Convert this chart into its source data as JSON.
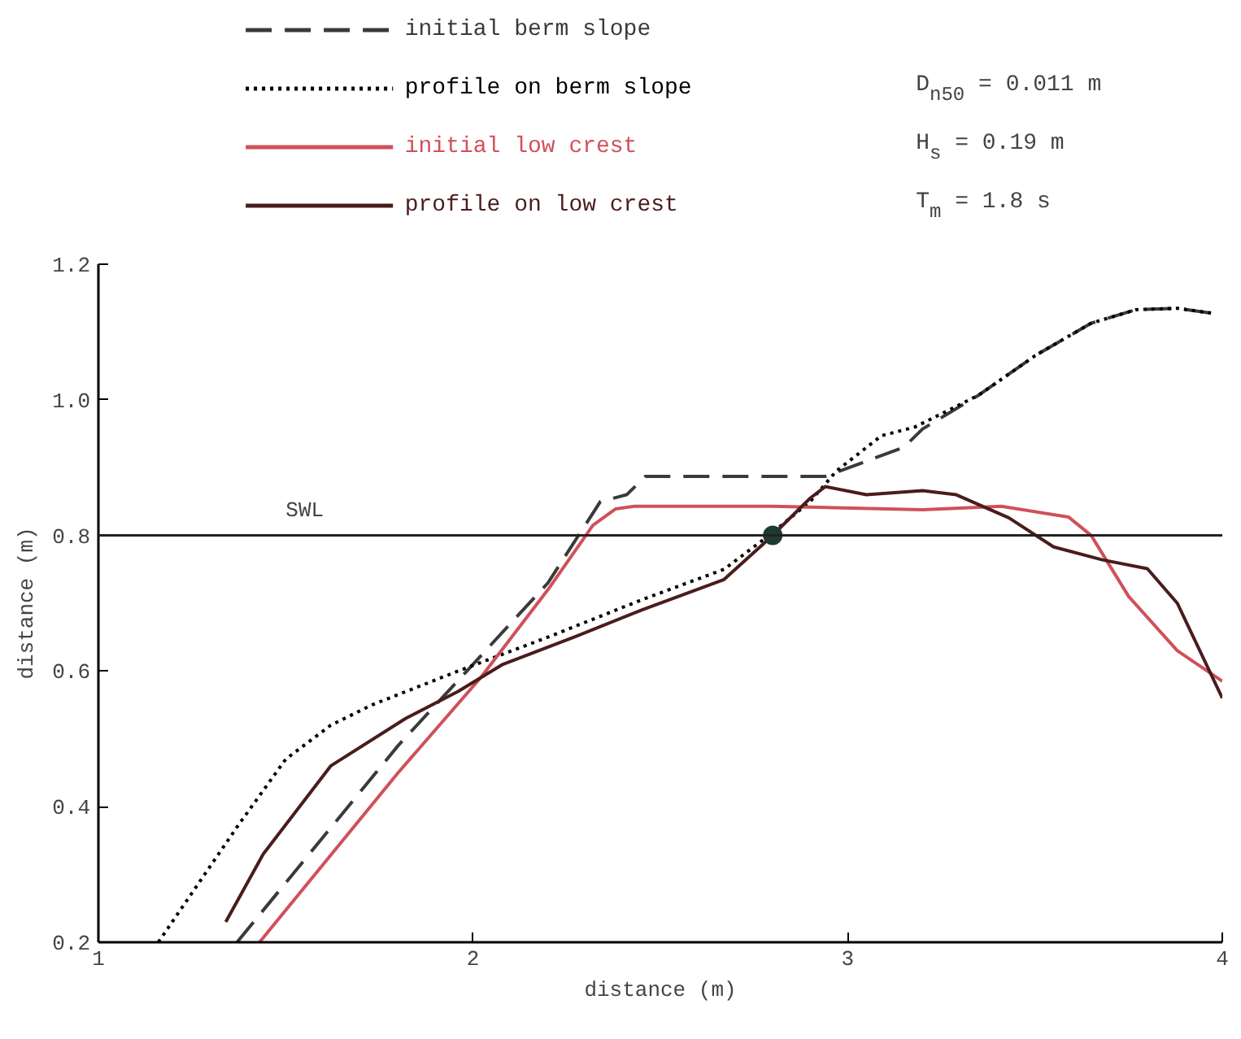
{
  "chart_data": {
    "type": "line",
    "xlabel": "distance (m)",
    "ylabel": "distance (m)",
    "xlim": [
      1,
      4
    ],
    "xticks": [
      1,
      2,
      3,
      4
    ],
    "ylim": [
      0.2,
      1.2
    ],
    "yticks": [
      0.2,
      0.4,
      0.6,
      0.8,
      {
        "value": 1.0,
        "label": "1.0"
      },
      1.2
    ],
    "grid": false,
    "legend": "top left",
    "series": [
      {
        "name": "initial berm slope",
        "color": "#3a3a3a",
        "line_style": "dashed",
        "x": [
          1.37,
          1.8,
          2.2,
          2.34,
          2.41,
          2.46,
          2.7,
          2.94,
          3.15,
          3.2,
          3.35,
          3.5,
          3.65,
          3.77,
          3.88,
          3.97
        ],
        "values": [
          0.2,
          0.49,
          0.73,
          0.85,
          0.86,
          0.887,
          0.887,
          0.887,
          0.93,
          0.957,
          1.007,
          1.065,
          1.113,
          1.133,
          1.135,
          1.128
        ]
      },
      {
        "name": "profile on berm slope",
        "color": "#000000",
        "line_style": "dotted",
        "x": [
          1.16,
          1.37,
          1.5,
          1.62,
          1.73,
          1.96,
          2.2,
          2.45,
          2.67,
          2.79,
          2.9,
          2.97,
          3.09,
          3.18,
          3.35,
          3.5,
          3.65,
          3.77,
          3.88,
          3.97
        ],
        "values": [
          0.2,
          0.37,
          0.47,
          0.52,
          0.55,
          0.6,
          0.65,
          0.705,
          0.75,
          0.8,
          0.85,
          0.895,
          0.947,
          0.96,
          1.007,
          1.065,
          1.113,
          1.133,
          1.135,
          1.128
        ]
      },
      {
        "name": "initial low crest",
        "color": "#d0505a",
        "line_style": "solid",
        "x": [
          1.43,
          1.8,
          2.02,
          2.2,
          2.32,
          2.38,
          2.43,
          2.8,
          3.2,
          3.41,
          3.59,
          3.65,
          3.75,
          3.88,
          4.0
        ],
        "values": [
          0.2,
          0.45,
          0.59,
          0.72,
          0.815,
          0.839,
          0.843,
          0.843,
          0.838,
          0.843,
          0.827,
          0.8,
          0.71,
          0.63,
          0.585
        ]
      },
      {
        "name": "profile on low crest",
        "color": "#4a1c1c",
        "line_style": "solid",
        "x": [
          1.34,
          1.44,
          1.62,
          1.82,
          1.96,
          2.08,
          2.27,
          2.45,
          2.67,
          2.79,
          2.9,
          2.94,
          3.05,
          3.2,
          3.29,
          3.43,
          3.55,
          3.68,
          3.8,
          3.88,
          4.0
        ],
        "values": [
          0.23,
          0.33,
          0.46,
          0.53,
          0.57,
          0.61,
          0.65,
          0.69,
          0.735,
          0.795,
          0.855,
          0.872,
          0.86,
          0.866,
          0.86,
          0.826,
          0.783,
          0.764,
          0.751,
          0.7,
          0.56
        ]
      },
      {
        "type": "scatter",
        "marker": "circle",
        "color": "#1e3b30",
        "x": [
          2.8
        ],
        "values": [
          0.8
        ]
      }
    ],
    "ref_lines": [
      {
        "axis": "y",
        "value": 0.8,
        "label": "SWL",
        "color": "#222222"
      }
    ],
    "annotations": [
      "D$_{n50}$ = 0.011 m",
      "H$_{s}$ = 0.19 m",
      "T$_{m}$ = 1.8 s"
    ]
  }
}
